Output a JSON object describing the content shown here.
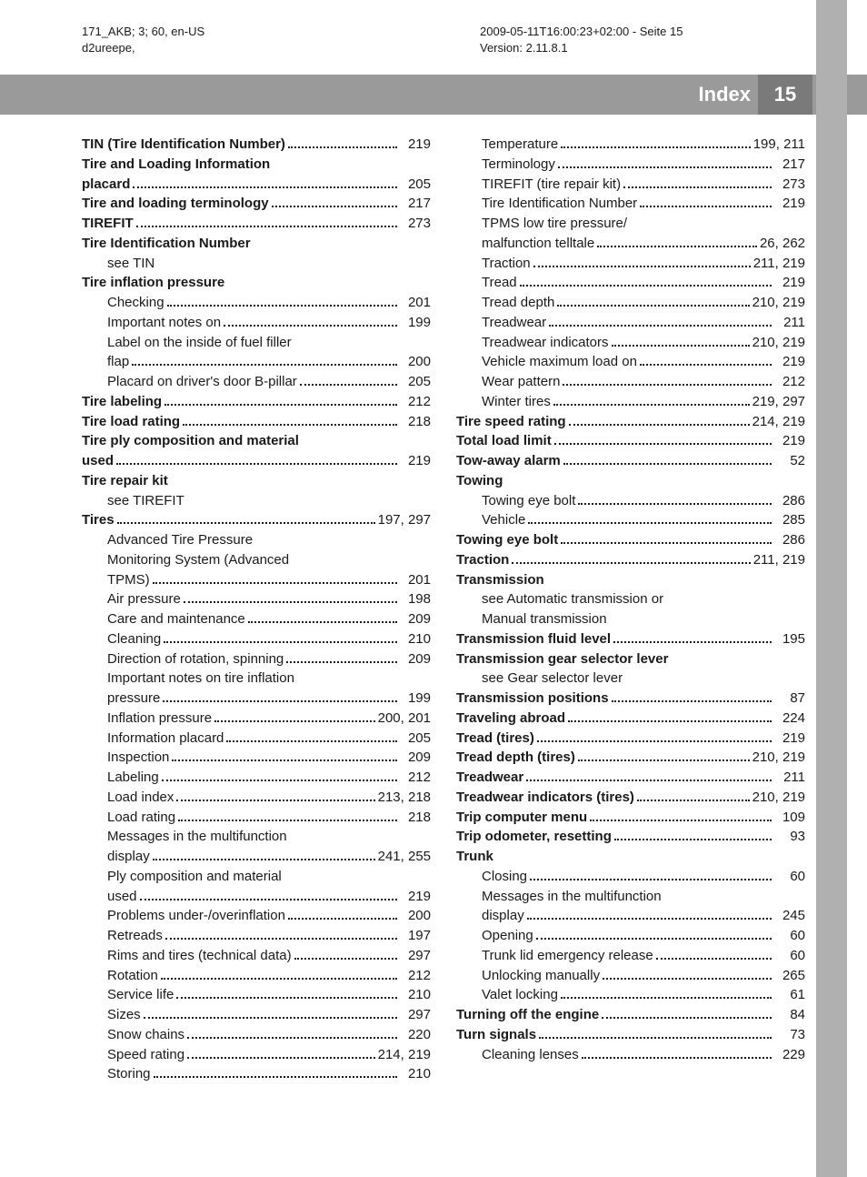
{
  "meta": {
    "leftLine1": "171_AKB; 3; 60, en-US",
    "leftLine2": "d2ureepe,",
    "rightLine1": "2009-05-11T16:00:23+02:00 - Seite 15",
    "rightLine2": "Version: 2.11.8.1"
  },
  "header": {
    "title": "Index",
    "pageNumber": "15"
  },
  "columns": [
    [
      {
        "t": "TIN (Tire Identification Number)",
        "p": "219",
        "b": true
      },
      {
        "t": "Tire and Loading Information",
        "b": true
      },
      {
        "t": "placard",
        "p": "205",
        "b": true,
        "cont": true
      },
      {
        "t": "Tire and loading terminology",
        "p": "217",
        "b": true
      },
      {
        "t": "TIREFIT",
        "p": "273",
        "b": true
      },
      {
        "t": "Tire Identification Number",
        "b": true
      },
      {
        "t": "see TIN",
        "sub": true,
        "noleader": true
      },
      {
        "t": "Tire inflation pressure",
        "b": true,
        "noleader": true
      },
      {
        "t": "Checking",
        "p": "201",
        "sub": true
      },
      {
        "t": "Important notes on",
        "p": "199",
        "sub": true
      },
      {
        "t": "Label on the inside of fuel filler",
        "sub": true,
        "noleader": true
      },
      {
        "t": "flap",
        "p": "200",
        "sub": true
      },
      {
        "t": "Placard on driver's door B-pillar",
        "p": "205",
        "sub": true
      },
      {
        "t": "Tire labeling",
        "p": "212",
        "b": true
      },
      {
        "t": "Tire load rating",
        "p": "218",
        "b": true
      },
      {
        "t": "Tire ply composition and material",
        "b": true
      },
      {
        "t": "used",
        "p": "219",
        "b": true,
        "cont": true
      },
      {
        "t": "Tire repair kit",
        "b": true,
        "noleader": true
      },
      {
        "t": "see TIREFIT",
        "sub": true,
        "noleader": true
      },
      {
        "t": "Tires",
        "p": "197, 297",
        "b": true
      },
      {
        "t": "Advanced Tire Pressure",
        "sub": true,
        "noleader": true
      },
      {
        "t": "Monitoring System (Advanced",
        "sub": true,
        "noleader": true
      },
      {
        "t": "TPMS)",
        "p": "201",
        "sub": true
      },
      {
        "t": "Air pressure",
        "p": "198",
        "sub": true
      },
      {
        "t": "Care and maintenance",
        "p": "209",
        "sub": true
      },
      {
        "t": "Cleaning",
        "p": "210",
        "sub": true
      },
      {
        "t": "Direction of rotation, spinning",
        "p": "209",
        "sub": true
      },
      {
        "t": "Important notes on tire inflation",
        "sub": true,
        "noleader": true
      },
      {
        "t": "pressure",
        "p": "199",
        "sub": true
      },
      {
        "t": "Inflation pressure",
        "p": "200, 201",
        "sub": true
      },
      {
        "t": "Information placard",
        "p": "205",
        "sub": true
      },
      {
        "t": "Inspection",
        "p": "209",
        "sub": true
      },
      {
        "t": "Labeling",
        "p": "212",
        "sub": true
      },
      {
        "t": "Load index",
        "p": "213, 218",
        "sub": true
      },
      {
        "t": "Load rating",
        "p": "218",
        "sub": true
      },
      {
        "t": "Messages in the multifunction",
        "sub": true,
        "noleader": true
      },
      {
        "t": "display",
        "p": "241, 255",
        "sub": true
      },
      {
        "t": "Ply composition and material",
        "sub": true,
        "noleader": true
      },
      {
        "t": "used",
        "p": "219",
        "sub": true
      },
      {
        "t": "Problems under-/overinflation",
        "p": "200",
        "sub": true
      },
      {
        "t": "Retreads",
        "p": "197",
        "sub": true
      },
      {
        "t": "Rims and tires (technical data)",
        "p": "297",
        "sub": true
      },
      {
        "t": "Rotation",
        "p": "212",
        "sub": true
      },
      {
        "t": "Service life",
        "p": "210",
        "sub": true
      },
      {
        "t": "Sizes",
        "p": "297",
        "sub": true
      },
      {
        "t": "Snow chains",
        "p": "220",
        "sub": true
      },
      {
        "t": "Speed rating",
        "p": "214, 219",
        "sub": true
      },
      {
        "t": "Storing",
        "p": "210",
        "sub": true
      }
    ],
    [
      {
        "t": "Temperature",
        "p": "199, 211",
        "sub": true
      },
      {
        "t": "Terminology",
        "p": "217",
        "sub": true
      },
      {
        "t": "TIREFIT (tire repair kit)",
        "p": "273",
        "sub": true
      },
      {
        "t": "Tire Identification Number",
        "p": "219",
        "sub": true
      },
      {
        "t": "TPMS low tire pressure/",
        "sub": true,
        "noleader": true
      },
      {
        "t": "malfunction telltale",
        "p": "26, 262",
        "sub": true
      },
      {
        "t": "Traction",
        "p": "211, 219",
        "sub": true
      },
      {
        "t": "Tread",
        "p": "219",
        "sub": true
      },
      {
        "t": "Tread depth",
        "p": "210, 219",
        "sub": true
      },
      {
        "t": "Treadwear",
        "p": "211",
        "sub": true
      },
      {
        "t": "Treadwear indicators",
        "p": "210, 219",
        "sub": true
      },
      {
        "t": "Vehicle maximum load on",
        "p": "219",
        "sub": true
      },
      {
        "t": "Wear pattern",
        "p": "212",
        "sub": true
      },
      {
        "t": "Winter tires",
        "p": "219, 297",
        "sub": true
      },
      {
        "t": "Tire speed rating",
        "p": "214, 219",
        "b": true
      },
      {
        "t": "Total load limit",
        "p": "219",
        "b": true
      },
      {
        "t": "Tow-away alarm",
        "p": "52",
        "b": true
      },
      {
        "t": "Towing",
        "b": true,
        "noleader": true
      },
      {
        "t": "Towing eye bolt",
        "p": "286",
        "sub": true
      },
      {
        "t": "Vehicle",
        "p": "285",
        "sub": true
      },
      {
        "t": "Towing eye bolt",
        "p": "286",
        "b": true
      },
      {
        "t": "Traction",
        "p": "211, 219",
        "b": true
      },
      {
        "t": "Transmission",
        "b": true,
        "noleader": true
      },
      {
        "t": "see Automatic transmission or",
        "sub": true,
        "noleader": true
      },
      {
        "t": "Manual transmission",
        "sub": true,
        "noleader": true
      },
      {
        "t": "Transmission fluid level",
        "p": "195",
        "b": true
      },
      {
        "t": "Transmission gear selector lever",
        "b": true,
        "noleader": true
      },
      {
        "t": "see Gear selector lever",
        "sub": true,
        "noleader": true
      },
      {
        "t": "Transmission positions",
        "p": "87",
        "b": true
      },
      {
        "t": "Traveling abroad",
        "p": "224",
        "b": true
      },
      {
        "t": "Tread (tires)",
        "p": "219",
        "b": true
      },
      {
        "t": "Tread depth (tires)",
        "p": "210, 219",
        "b": true
      },
      {
        "t": "Treadwear",
        "p": "211",
        "b": true
      },
      {
        "t": "Treadwear indicators (tires)",
        "p": "210, 219",
        "b": true
      },
      {
        "t": "Trip computer menu",
        "p": "109",
        "b": true
      },
      {
        "t": "Trip odometer, resetting",
        "p": "93",
        "b": true
      },
      {
        "t": "Trunk",
        "b": true,
        "noleader": true
      },
      {
        "t": "Closing",
        "p": "60",
        "sub": true
      },
      {
        "t": "Messages in the multifunction",
        "sub": true,
        "noleader": true
      },
      {
        "t": "display",
        "p": "245",
        "sub": true
      },
      {
        "t": "Opening",
        "p": "60",
        "sub": true
      },
      {
        "t": "Trunk lid emergency release",
        "p": "60",
        "sub": true
      },
      {
        "t": "Unlocking manually",
        "p": "265",
        "sub": true
      },
      {
        "t": "Valet locking",
        "p": "61",
        "sub": true
      },
      {
        "t": "Turning off the engine",
        "p": "84",
        "b": true
      },
      {
        "t": "Turn signals",
        "p": "73",
        "b": true
      },
      {
        "t": "Cleaning lenses",
        "p": "229",
        "sub": true
      }
    ]
  ]
}
